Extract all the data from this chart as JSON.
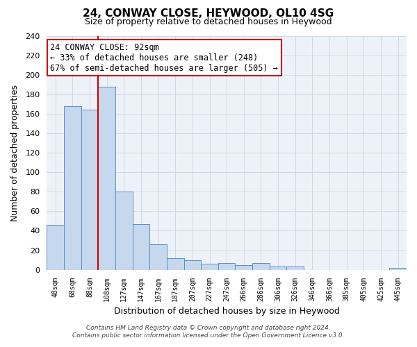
{
  "title": "24, CONWAY CLOSE, HEYWOOD, OL10 4SG",
  "subtitle": "Size of property relative to detached houses in Heywood",
  "xlabel": "Distribution of detached houses by size in Heywood",
  "ylabel": "Number of detached properties",
  "bar_labels": [
    "48sqm",
    "68sqm",
    "88sqm",
    "108sqm",
    "127sqm",
    "147sqm",
    "167sqm",
    "187sqm",
    "207sqm",
    "227sqm",
    "247sqm",
    "266sqm",
    "286sqm",
    "306sqm",
    "326sqm",
    "346sqm",
    "366sqm",
    "385sqm",
    "405sqm",
    "425sqm",
    "445sqm"
  ],
  "bar_values": [
    46,
    168,
    164,
    188,
    80,
    47,
    26,
    12,
    10,
    6,
    7,
    5,
    7,
    3,
    3,
    0,
    0,
    0,
    0,
    0,
    2
  ],
  "bar_color": "#c5d8ee",
  "bar_edge_color": "#5b8ec5",
  "property_line_color": "#cc0000",
  "annotation_title": "24 CONWAY CLOSE: 92sqm",
  "annotation_line1": "← 33% of detached houses are smaller (248)",
  "annotation_line2": "67% of semi-detached houses are larger (505) →",
  "annotation_box_color": "#ffffff",
  "annotation_box_edge_color": "#cc0000",
  "ylim": [
    0,
    240
  ],
  "yticks": [
    0,
    20,
    40,
    60,
    80,
    100,
    120,
    140,
    160,
    180,
    200,
    220,
    240
  ],
  "grid_color": "#d0d8e8",
  "bg_color": "#ffffff",
  "plot_bg_color": "#edf2f9",
  "footer_line1": "Contains HM Land Registry data © Crown copyright and database right 2024.",
  "footer_line2": "Contains public sector information licensed under the Open Government Licence v3.0."
}
